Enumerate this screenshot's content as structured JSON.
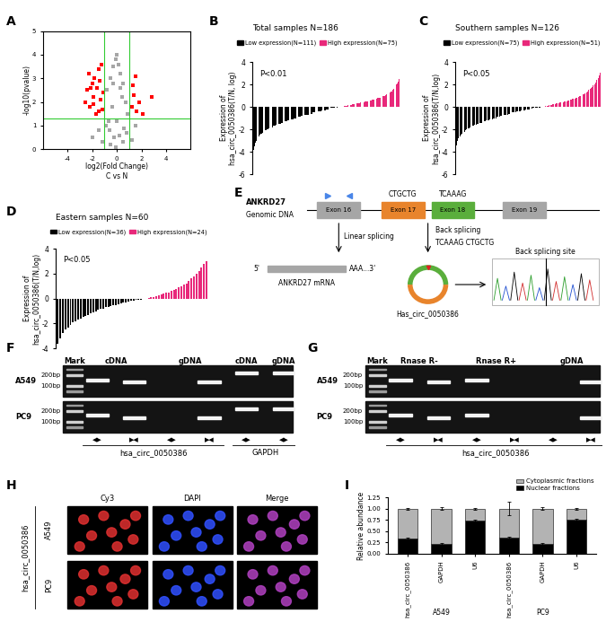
{
  "chart_data": [
    {
      "label": "A",
      "type": "scatter",
      "xlabel": "log2(Fold Change)\nC vs N",
      "ylabel": "-log10(pvalue)",
      "xlim": [
        -6,
        6
      ],
      "xticks": [
        -4,
        -2,
        0,
        2,
        4
      ],
      "ylim": [
        0,
        5
      ],
      "yticks": [
        0,
        1,
        2,
        3,
        4,
        5
      ],
      "thresholds": {
        "x": [
          -1,
          1
        ],
        "y": 1.3,
        "color": "#33cc33"
      },
      "series": [
        {
          "color": "#a6a6a6",
          "marker": "square",
          "x": [
            -0.8,
            -0.5,
            -0.3,
            -0.1,
            0.1,
            0.3,
            0.5,
            0.7,
            0.9,
            -0.9,
            -0.6,
            -0.2,
            0.2,
            0.6,
            -0.4,
            0.4,
            0,
            -0.7,
            0.8,
            -1.5,
            -2.0,
            1.5,
            -1.2,
            1.2,
            -0.3,
            0.3,
            -0.5,
            0.5,
            0.0,
            -0.1
          ],
          "y": [
            2.5,
            3.0,
            3.5,
            3.8,
            3.6,
            3.2,
            2.8,
            2.0,
            1.5,
            1.0,
            0.8,
            0.5,
            0.6,
            0.9,
            1.8,
            2.2,
            4.0,
            1.2,
            0.7,
            0.8,
            0.5,
            1.0,
            0.3,
            0.4,
            2.8,
            2.6,
            0.2,
            0.3,
            1.2,
            0.1
          ]
        },
        {
          "color": "#ff0000",
          "marker": "square",
          "x": [
            -2.6,
            -2.4,
            -2.2,
            -2.0,
            -1.9,
            -1.8,
            -1.6,
            -1.5,
            -1.4,
            -1.3,
            -1.2,
            -1.1,
            -2.3,
            -1.7,
            -1.5,
            -1.9,
            -2.1,
            -1.25,
            1.2,
            1.4,
            1.6,
            1.8,
            2.1,
            1.3,
            1.5,
            2.8
          ],
          "y": [
            2.0,
            2.5,
            1.8,
            2.8,
            2.2,
            3.0,
            2.6,
            1.6,
            2.9,
            2.1,
            1.7,
            2.4,
            3.2,
            1.5,
            3.4,
            1.9,
            2.6,
            3.6,
            1.8,
            2.3,
            1.6,
            2.0,
            1.5,
            2.7,
            3.1,
            2.2
          ]
        }
      ]
    },
    {
      "label": "B",
      "type": "bar",
      "title": "Total samples N=186",
      "annotation": "P<0.01",
      "ylabel": "Expression of\nhsa_circ_0050386(T/N, log)",
      "ylim": [
        -6,
        4
      ],
      "yticks": [
        -6,
        -4,
        -2,
        0,
        2,
        4
      ],
      "tick_labels": "y",
      "legend": "upper right",
      "series": [
        {
          "name": "Low expression(N=111)",
          "color": "#000000",
          "values": [
            -4.3,
            -3.8,
            -3.5,
            -3.2,
            -3.0,
            -2.9,
            -2.8,
            -2.7,
            -2.6,
            -2.5,
            -2.4,
            -2.4,
            -2.3,
            -2.3,
            -2.2,
            -2.2,
            -2.1,
            -2.1,
            -2.0,
            -2.0,
            -1.9,
            -1.9,
            -1.9,
            -1.8,
            -1.8,
            -1.8,
            -1.7,
            -1.7,
            -1.7,
            -1.6,
            -1.6,
            -1.6,
            -1.5,
            -1.5,
            -1.5,
            -1.5,
            -1.4,
            -1.4,
            -1.4,
            -1.4,
            -1.3,
            -1.3,
            -1.3,
            -1.3,
            -1.2,
            -1.2,
            -1.2,
            -1.2,
            -1.1,
            -1.1,
            -1.1,
            -1.1,
            -1.0,
            -1.0,
            -1.0,
            -1.0,
            -0.9,
            -0.9,
            -0.9,
            -0.9,
            -0.9,
            -0.8,
            -0.8,
            -0.8,
            -0.8,
            -0.8,
            -0.7,
            -0.7,
            -0.7,
            -0.7,
            -0.7,
            -0.6,
            -0.6,
            -0.6,
            -0.6,
            -0.6,
            -0.5,
            -0.5,
            -0.5,
            -0.5,
            -0.5,
            -0.5,
            -0.4,
            -0.4,
            -0.4,
            -0.4,
            -0.4,
            -0.3,
            -0.3,
            -0.3,
            -0.3,
            -0.3,
            -0.3,
            -0.2,
            -0.2,
            -0.2,
            -0.2,
            -0.2,
            -0.2,
            -0.1,
            -0.1,
            -0.1,
            -0.1,
            -0.1,
            -0.1,
            -0.05,
            -0.05,
            -0.05,
            -0.02,
            -0.02,
            -0.01
          ]
        },
        {
          "name": "High expression(N=75)",
          "color": "#e8287a",
          "values": [
            0.02,
            0.03,
            0.05,
            0.05,
            0.08,
            0.1,
            0.1,
            0.1,
            0.12,
            0.15,
            0.15,
            0.18,
            0.2,
            0.2,
            0.2,
            0.22,
            0.25,
            0.25,
            0.28,
            0.3,
            0.3,
            0.3,
            0.32,
            0.35,
            0.35,
            0.38,
            0.4,
            0.4,
            0.42,
            0.45,
            0.45,
            0.48,
            0.5,
            0.5,
            0.52,
            0.55,
            0.55,
            0.58,
            0.6,
            0.6,
            0.62,
            0.65,
            0.68,
            0.7,
            0.7,
            0.72,
            0.75,
            0.78,
            0.8,
            0.8,
            0.85,
            0.88,
            0.9,
            0.92,
            0.95,
            1.0,
            1.0,
            1.05,
            1.1,
            1.1,
            1.15,
            1.2,
            1.25,
            1.3,
            1.35,
            1.4,
            1.5,
            1.6,
            1.7,
            1.8,
            1.9,
            2.0,
            2.1,
            2.3,
            2.5
          ]
        }
      ]
    },
    {
      "label": "C",
      "type": "bar",
      "title": "Southern samples N=126",
      "annotation": "P<0.05",
      "ylabel": "Expression of\nhsa_circ_0050386(T/N,log)",
      "ylim": [
        -6,
        4
      ],
      "yticks": [
        -6,
        -4,
        -2,
        0,
        2,
        4
      ],
      "tick_labels": "y",
      "legend": "upper right",
      "series": [
        {
          "name": "Low expression(N=75)",
          "color": "#000000",
          "values": [
            -3.4,
            -3.0,
            -2.8,
            -2.6,
            -2.5,
            -2.4,
            -2.3,
            -2.2,
            -2.1,
            -2.0,
            -1.9,
            -1.9,
            -1.8,
            -1.8,
            -1.7,
            -1.7,
            -1.6,
            -1.6,
            -1.5,
            -1.5,
            -1.4,
            -1.4,
            -1.4,
            -1.3,
            -1.3,
            -1.3,
            -1.2,
            -1.2,
            -1.2,
            -1.1,
            -1.1,
            -1.1,
            -1.0,
            -1.0,
            -1.0,
            -0.9,
            -0.9,
            -0.9,
            -0.8,
            -0.8,
            -0.8,
            -0.7,
            -0.7,
            -0.7,
            -0.7,
            -0.6,
            -0.6,
            -0.6,
            -0.5,
            -0.5,
            -0.5,
            -0.5,
            -0.4,
            -0.4,
            -0.4,
            -0.4,
            -0.3,
            -0.3,
            -0.3,
            -0.3,
            -0.2,
            -0.2,
            -0.2,
            -0.2,
            -0.15,
            -0.15,
            -0.1,
            -0.1,
            -0.1,
            -0.08,
            -0.06,
            -0.05,
            -0.04,
            -0.02,
            -0.01
          ]
        },
        {
          "name": "High expression(N=51)",
          "color": "#e8287a",
          "values": [
            0.02,
            0.05,
            0.08,
            0.1,
            0.12,
            0.15,
            0.18,
            0.2,
            0.22,
            0.25,
            0.28,
            0.3,
            0.32,
            0.35,
            0.38,
            0.4,
            0.42,
            0.45,
            0.48,
            0.5,
            0.52,
            0.55,
            0.6,
            0.62,
            0.65,
            0.7,
            0.72,
            0.75,
            0.8,
            0.85,
            0.9,
            0.95,
            1.0,
            1.05,
            1.1,
            1.15,
            1.2,
            1.3,
            1.4,
            1.5,
            1.6,
            1.7,
            1.8,
            1.9,
            2.0,
            2.2,
            2.4,
            2.6,
            2.8,
            3.1,
            3.5
          ]
        }
      ]
    },
    {
      "label": "D",
      "type": "bar",
      "title": "Eastern samples N=60",
      "annotation": "P<0.05",
      "ylabel": "Expression of\nhsa_circ_0050386(T/N,log)",
      "ylim": [
        -4,
        4
      ],
      "yticks": [
        -4,
        -2,
        0,
        2,
        4
      ],
      "tick_labels": "y",
      "legend": "upper right",
      "series": [
        {
          "name": "Low expression(N=36)",
          "color": "#000000",
          "values": [
            -3.6,
            -3.2,
            -2.8,
            -2.5,
            -2.3,
            -2.1,
            -1.9,
            -1.8,
            -1.7,
            -1.6,
            -1.5,
            -1.4,
            -1.3,
            -1.2,
            -1.1,
            -1.0,
            -0.9,
            -0.85,
            -0.8,
            -0.7,
            -0.65,
            -0.6,
            -0.55,
            -0.5,
            -0.45,
            -0.4,
            -0.35,
            -0.3,
            -0.25,
            -0.2,
            -0.15,
            -0.12,
            -0.1,
            -0.08,
            -0.05,
            -0.02
          ]
        },
        {
          "name": "High expression(N=24)",
          "color": "#e8287a",
          "values": [
            0.05,
            0.1,
            0.15,
            0.2,
            0.25,
            0.3,
            0.4,
            0.45,
            0.5,
            0.6,
            0.7,
            0.8,
            0.9,
            1.0,
            1.1,
            1.2,
            1.4,
            1.6,
            1.8,
            2.0,
            2.2,
            2.5,
            2.8,
            3.0
          ]
        }
      ]
    },
    {
      "label": "I",
      "type": "bar",
      "stacked": true,
      "ylabel": "Relative abundance",
      "legend": "upper right",
      "categories": [
        "hsa_circ_0050386",
        "GAPDH",
        "U6",
        "hsa_circ_0050386",
        "GAPDH",
        "U6"
      ],
      "groups": [
        "A549",
        "PC9"
      ],
      "ylim": [
        0,
        1.25
      ],
      "yticks": [
        {
          "value": 0,
          "label": "0.00"
        },
        {
          "value": 0.25,
          "label": "0.25"
        },
        {
          "value": 0.5,
          "label": "0.50"
        },
        {
          "value": 0.75,
          "label": "0.75"
        },
        {
          "value": 1,
          "label": "1.00"
        },
        {
          "value": 1.25,
          "label": "1.25"
        }
      ],
      "series": [
        {
          "name": "Nuclear fractions",
          "color": "#000000",
          "values": [
            0.33,
            0.22,
            0.73,
            0.35,
            0.21,
            0.75
          ],
          "errors": [
            0.02,
            0.02,
            0.02,
            0.03,
            0.02,
            0.02
          ]
        },
        {
          "name": "Cytoplasmic fractions",
          "color": "#b3b3b3",
          "values": [
            0.67,
            0.78,
            0.27,
            0.65,
            0.79,
            0.25
          ],
          "errors": [
            0.02,
            0.03,
            0.02,
            0.15,
            0.03,
            0.02
          ]
        }
      ]
    }
  ],
  "panel_E": {
    "label": "E",
    "gene": "ANKRD27",
    "genomic": "Genomic DNA",
    "exons": [
      "Exon 16",
      "Exon 17",
      "Exon 18",
      "Exon 19"
    ],
    "colors": [
      "#a6a6a6",
      "#e8842c",
      "#5aae3c",
      "#a6a6a6"
    ],
    "seq_left": "CTGCTG",
    "seq_right": "TCAAAG",
    "linear": "Linear splicing",
    "back": "Back splicing",
    "junction": "TCAAAG CTGCTG",
    "five": "5'",
    "three": "AAA...3'",
    "mrna": "ANKRD27 mRNA",
    "circ": "Has_circ_0050386",
    "site": "Back splicing site"
  },
  "panel_F": {
    "label": "F",
    "ladder": "Mark",
    "lane_groups": [
      {
        "text": "cDNA",
        "lanes": 2
      },
      {
        "text": "gDNA",
        "lanes": 2
      },
      {
        "text": "cDNA",
        "lanes": 1
      },
      {
        "text": "gDNA",
        "lanes": 1
      }
    ],
    "primers": [
      "◀▶",
      "▶◀",
      "◀▶",
      "▶◀",
      "◀▶",
      "◀▶"
    ],
    "groups": [
      {
        "name": "hsa_circ_0050386",
        "lanes": 4
      },
      {
        "name": "GAPDH",
        "lanes": 2
      }
    ],
    "markers": [
      {
        "value": 200,
        "label": "200bp"
      },
      {
        "value": 100,
        "label": "100bp"
      }
    ],
    "rows": [
      {
        "name": "A549",
        "bands": [
          150,
          130,
          null,
          130,
          230,
          230
        ]
      },
      {
        "name": "PC9",
        "bands": [
          150,
          130,
          null,
          130,
          230,
          230
        ]
      }
    ]
  },
  "panel_G": {
    "label": "G",
    "ladder": "Mark",
    "lane_groups": [
      {
        "text": "Rnase R-",
        "lanes": 2
      },
      {
        "text": "Rnase R+",
        "lanes": 2
      },
      {
        "text": "gDNA",
        "lanes": 2
      }
    ],
    "primers": [
      "◀▶",
      "▶◀",
      "◀▶",
      "▶◀",
      "◀▶",
      "▶◀"
    ],
    "groups": [
      {
        "name": "hsa_circ_0050386",
        "lanes": 6
      }
    ],
    "markers": [
      {
        "value": 200,
        "label": "200bp"
      },
      {
        "value": 100,
        "label": "100bp"
      }
    ],
    "rows": [
      {
        "name": "A549",
        "bands": [
          150,
          130,
          150,
          null,
          null,
          130
        ]
      },
      {
        "name": "PC9",
        "bands": [
          150,
          130,
          150,
          null,
          null,
          130
        ]
      }
    ]
  },
  "panel_H": {
    "label": "H",
    "side": "hsa_circ_0050386",
    "columns": [
      "Cy3",
      "DAPI",
      "Merge"
    ],
    "colors": [
      "#e03030",
      "#3050ff",
      "#b040c0"
    ],
    "rows": [
      "A549",
      "PC9"
    ]
  }
}
